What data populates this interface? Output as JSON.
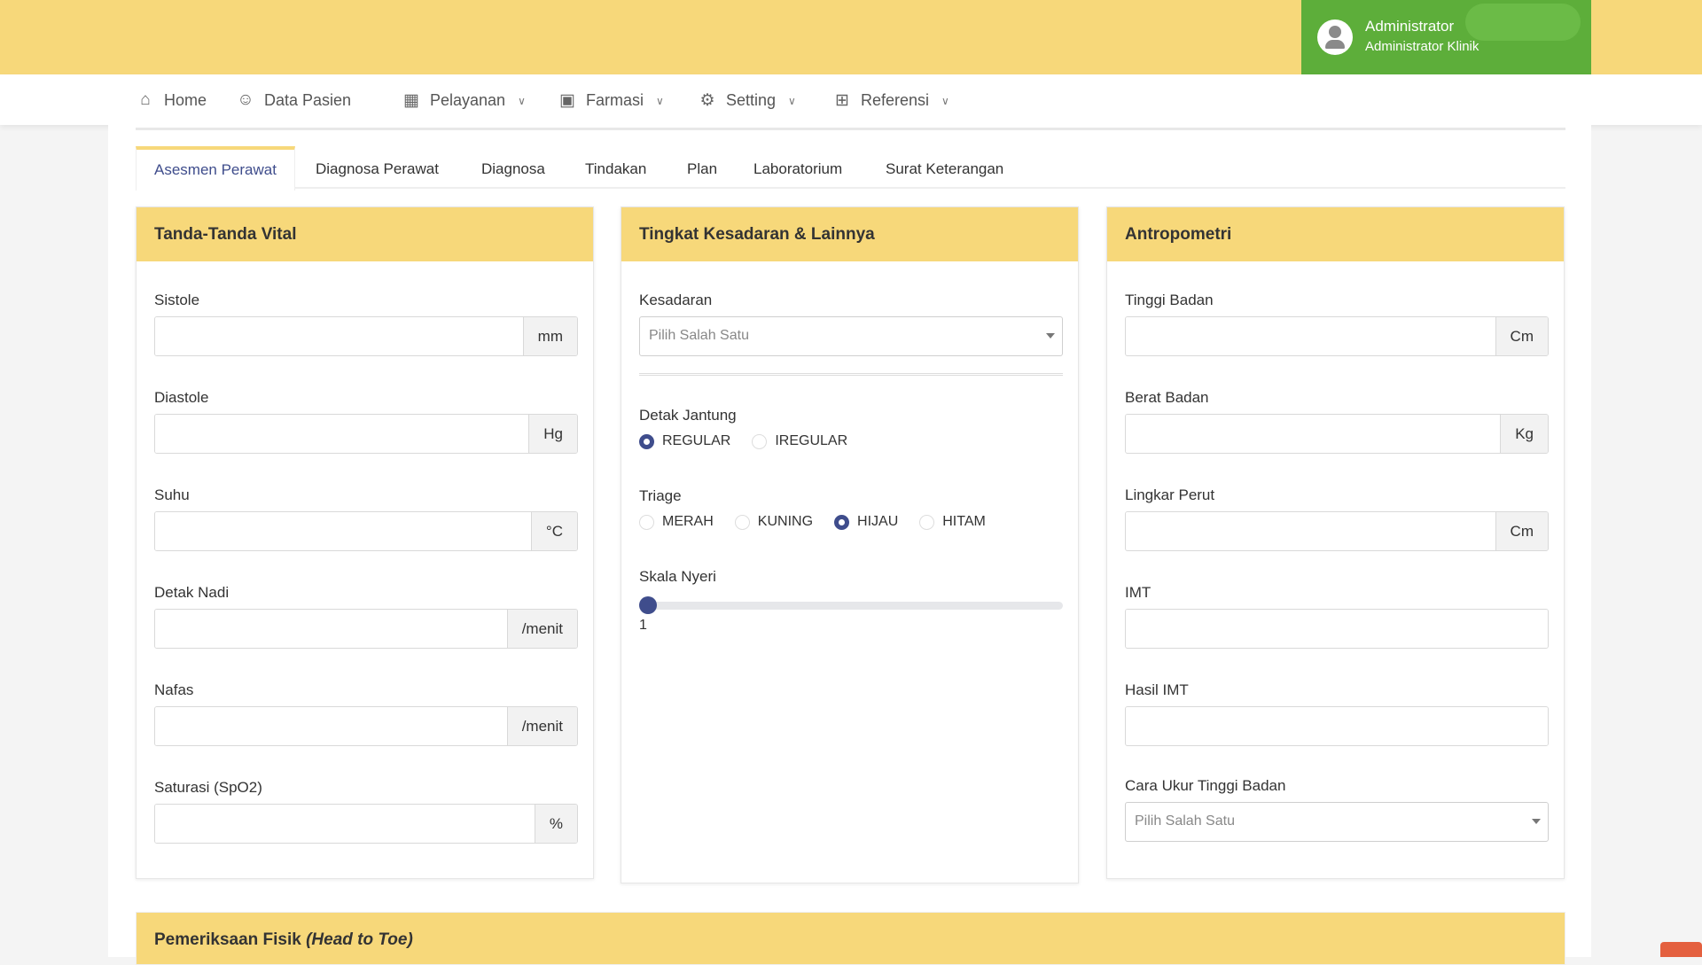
{
  "user": {
    "name": "Administrator",
    "role": "Administrator Klinik"
  },
  "nav": [
    {
      "label": "Home",
      "icon": "home-icon"
    },
    {
      "label": "Data Pasien",
      "icon": "user-icon"
    },
    {
      "label": "Pelayanan",
      "icon": "building-icon"
    },
    {
      "label": "Farmasi",
      "icon": "medkit-icon"
    },
    {
      "label": "Setting",
      "icon": "gear-icon"
    },
    {
      "label": "Referensi",
      "icon": "grid-icon"
    }
  ],
  "tabs": [
    "Asesmen Perawat",
    "Diagnosa Perawat",
    "Diagnosa",
    "Tindakan",
    "Plan",
    "Laboratorium",
    "Surat Keterangan"
  ],
  "vital": {
    "title": "Tanda-Tanda Vital",
    "fields": [
      {
        "label": "Sistole",
        "unit": "mm",
        "value": ""
      },
      {
        "label": "Diastole",
        "unit": "Hg",
        "value": ""
      },
      {
        "label": "Suhu",
        "unit": "°C",
        "value": ""
      },
      {
        "label": "Detak Nadi",
        "unit": "/menit",
        "value": ""
      },
      {
        "label": "Nafas",
        "unit": "/menit",
        "value": ""
      },
      {
        "label": "Saturasi (SpO2)",
        "unit": "%",
        "value": ""
      }
    ]
  },
  "kesadaran": {
    "title": "Tingkat Kesadaran & Lainnya",
    "kesadaran_label": "Kesadaran",
    "kesadaran_placeholder": "Pilih Salah Satu",
    "detak_label": "Detak Jantung",
    "detak_options": [
      "REGULAR",
      "IREGULAR"
    ],
    "detak_selected": "REGULAR",
    "triage_label": "Triage",
    "triage_options": [
      "MERAH",
      "KUNING",
      "HIJAU",
      "HITAM"
    ],
    "triage_selected": "HIJAU",
    "nyeri_label": "Skala Nyeri",
    "nyeri_value": "1",
    "nyeri_min": 1,
    "nyeri_max": 10
  },
  "antropometri": {
    "title": "Antropometri",
    "fields": [
      {
        "label": "Tinggi Badan",
        "unit": "Cm"
      },
      {
        "label": "Berat Badan",
        "unit": "Kg"
      },
      {
        "label": "Lingkar Perut",
        "unit": "Cm"
      },
      {
        "label": "IMT",
        "unit": ""
      },
      {
        "label": "Hasil IMT",
        "unit": ""
      }
    ],
    "cara_label": "Cara Ukur Tinggi Badan",
    "cara_placeholder": "Pilih Salah Satu"
  },
  "fisik": {
    "title": "Pemeriksaan Fisik",
    "subtitle": "(Head to Toe)"
  },
  "colors": {
    "header": "#f7d87a",
    "user_box": "#5dae3a",
    "accent": "#3f4d8c"
  }
}
